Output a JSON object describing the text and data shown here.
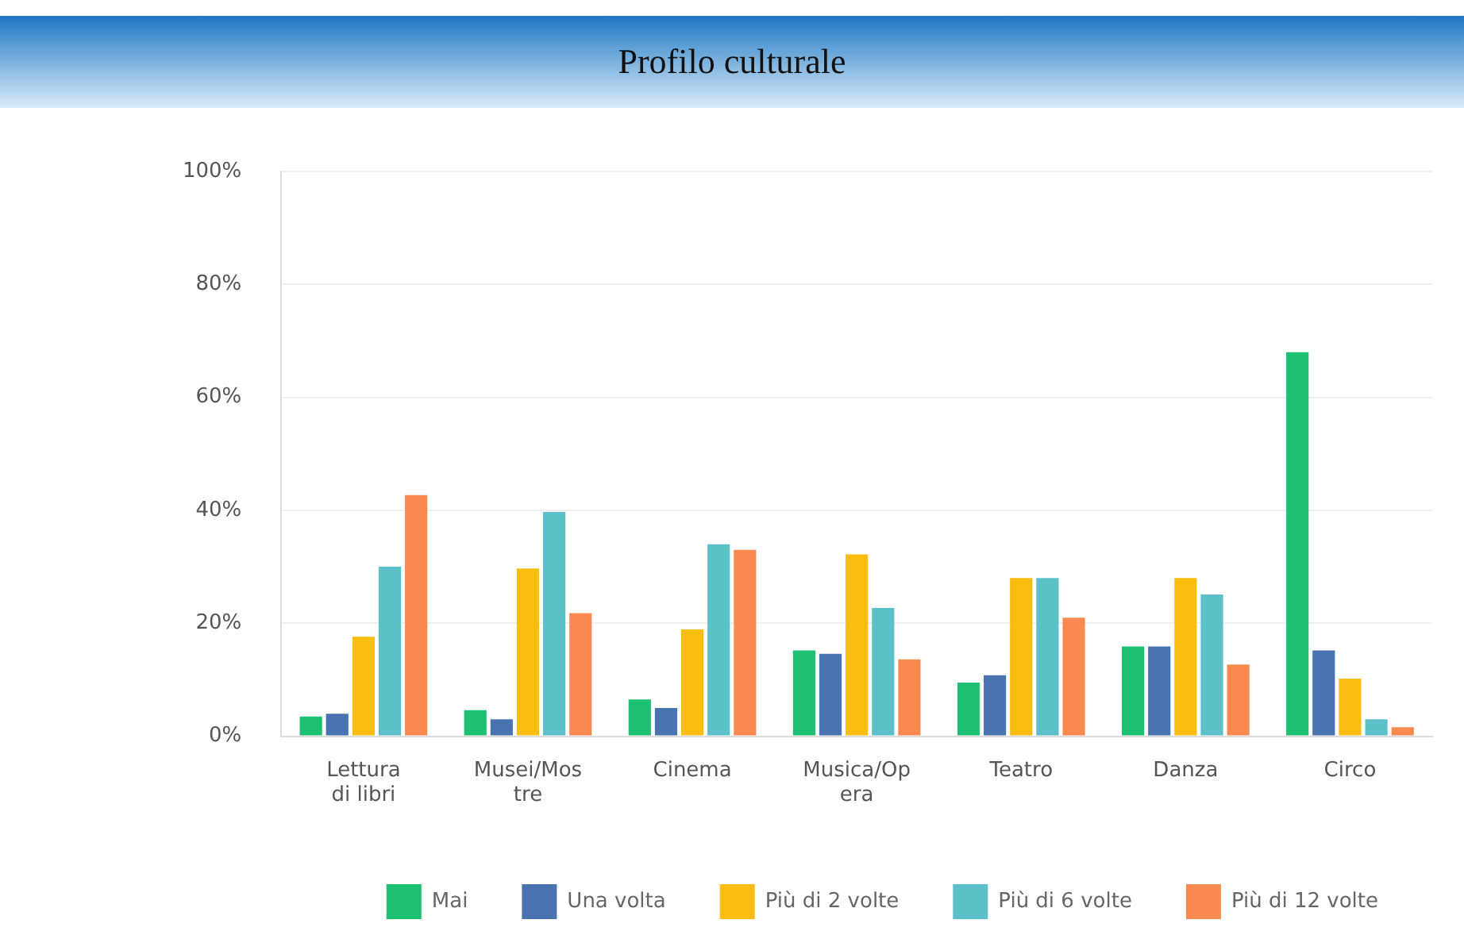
{
  "chart_data": {
    "type": "bar",
    "title": "Profilo culturale",
    "categories": [
      "Lettura di libri",
      "Musei/Mostre",
      "Cinema",
      "Musica/Opera",
      "Teatro",
      "Danza",
      "Circo"
    ],
    "series": [
      {
        "name": "Mai",
        "color": "#1dbf73",
        "values": [
          3.5,
          4.6,
          6.5,
          15.2,
          9.5,
          15.9,
          68
        ]
      },
      {
        "name": "Una volta",
        "color": "#4a72b0",
        "values": [
          4,
          3,
          5,
          14.6,
          10.8,
          15.9,
          15.2
        ]
      },
      {
        "name": "Più di 2 volte",
        "color": "#f9bd10",
        "values": [
          17.6,
          29.7,
          18.9,
          32.2,
          28,
          28,
          10.2
        ]
      },
      {
        "name": "Più di 6 volte",
        "color": "#5cc0c8",
        "values": [
          30,
          39.7,
          34,
          22.7,
          28,
          25.1,
          3
        ]
      },
      {
        "name": "Più di 12 volte",
        "color": "#f98a4f",
        "values": [
          42.7,
          21.8,
          33,
          13.6,
          21,
          12.7,
          1.6
        ]
      }
    ],
    "ylim": [
      0,
      100
    ],
    "yticks": [
      {
        "value": 0,
        "label": "0%"
      },
      {
        "value": 20,
        "label": "20%"
      },
      {
        "value": 40,
        "label": "40%"
      },
      {
        "value": 60,
        "label": "60%"
      },
      {
        "value": 80,
        "label": "80%"
      },
      {
        "value": 100,
        "label": "100%"
      }
    ],
    "grid": "y",
    "legend": "bottom"
  }
}
